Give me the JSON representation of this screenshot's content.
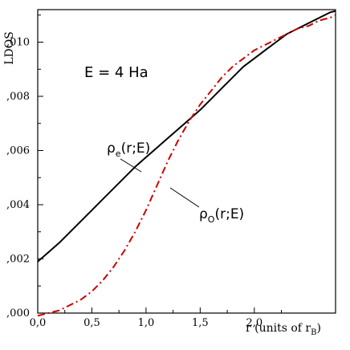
{
  "chart_data": {
    "type": "line",
    "title": "",
    "xlabel": "r (units of r",
    "xlabel_sub": "B",
    "xlabel_close": ")",
    "ylabel": "LDOS",
    "xlim": [
      0.0,
      2.75
    ],
    "ylim": [
      0.0,
      0.0112
    ],
    "x_ticks": [
      0.0,
      0.5,
      1.0,
      1.5,
      2.0
    ],
    "x_tick_labels": [
      "0,0",
      "0,5",
      "1,0",
      "1,5",
      "2,0"
    ],
    "y_ticks": [
      0.0,
      0.002,
      0.004,
      0.006,
      0.008,
      0.01
    ],
    "y_tick_labels": [
      ",000",
      ",002",
      ",004",
      ",006",
      ",008",
      ",010"
    ],
    "grid": false,
    "annotation": "E = 4 Ha",
    "series": [
      {
        "name": "ρe(r;E)",
        "label_main": "ρ",
        "label_sub": "e",
        "label_rest": "(r;E)",
        "color": "#000000",
        "style": "solid",
        "x": [
          0.0,
          0.1,
          0.2,
          0.3,
          0.4,
          0.5,
          0.6,
          0.7,
          0.8,
          0.9,
          1.0,
          1.1,
          1.2,
          1.3,
          1.4,
          1.5,
          1.6,
          1.7,
          1.8,
          1.9,
          2.0,
          2.1,
          2.2,
          2.3,
          2.4,
          2.5,
          2.6,
          2.7,
          2.75
        ],
        "y": [
          0.0019,
          0.00225,
          0.0026,
          0.003,
          0.0034,
          0.0038,
          0.0042,
          0.0046,
          0.005,
          0.0054,
          0.00575,
          0.0061,
          0.00645,
          0.0068,
          0.00715,
          0.0075,
          0.0079,
          0.0083,
          0.0087,
          0.0091,
          0.0094,
          0.0097,
          0.01,
          0.0103,
          0.0105,
          0.0107,
          0.0109,
          0.0111,
          0.01115
        ]
      },
      {
        "name": "ρO(r;E)",
        "label_main": "ρ",
        "label_sub": "O",
        "label_rest": "(r;E)",
        "color": "#cc0000",
        "style": "dash-dot",
        "x": [
          0.0,
          0.1,
          0.2,
          0.3,
          0.4,
          0.5,
          0.6,
          0.7,
          0.8,
          0.9,
          1.0,
          1.1,
          1.2,
          1.3,
          1.4,
          1.5,
          1.6,
          1.7,
          1.8,
          1.9,
          2.0,
          2.1,
          2.2,
          2.3,
          2.4,
          2.5,
          2.6,
          2.7,
          2.75
        ],
        "y": [
          -0.0001,
          0.0,
          0.0001,
          0.0003,
          0.0005,
          0.0008,
          0.0012,
          0.0017,
          0.0023,
          0.003,
          0.0038,
          0.0047,
          0.0056,
          0.0064,
          0.0071,
          0.0077,
          0.0082,
          0.0087,
          0.0091,
          0.0094,
          0.0097,
          0.0099,
          0.0101,
          0.0103,
          0.0105,
          0.0106,
          0.0108,
          0.0109,
          0.011
        ]
      }
    ]
  }
}
